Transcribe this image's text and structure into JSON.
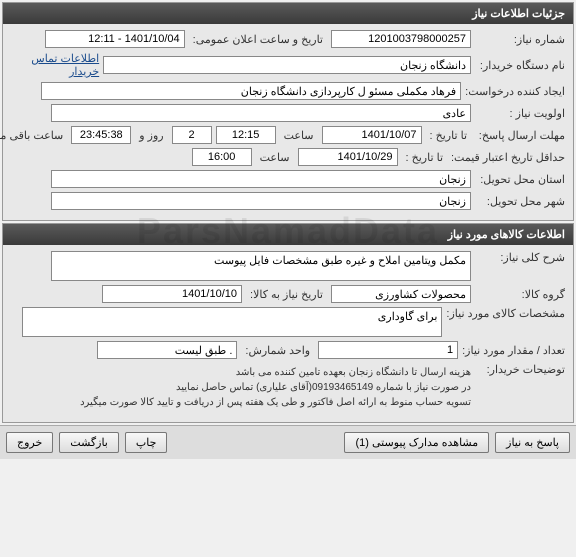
{
  "panel1": {
    "title": "جزئیات اطلاعات نیاز",
    "request_number_label": "شماره نیاز:",
    "request_number": "1201003798000257",
    "announce_label": "تاریخ و ساعت اعلان عمومی:",
    "announce_value": "1401/10/04 - 12:11",
    "org_label": "نام دستگاه خریدار:",
    "org_value": "دانشگاه زنجان",
    "contact_link": "اطلاعات تماس خریدار",
    "creator_label": "ایجاد کننده درخواست:",
    "creator_value": "فرهاد مکملی مسئو ل کارپردازی دانشگاه زنجان",
    "priority_label": "اولویت نیاز :",
    "priority_value": "عادی",
    "deadline_label": "مهلت ارسال پاسخ:",
    "to_date_label": "تا تاریخ :",
    "deadline_date": "1401/10/07",
    "time_label": "ساعت",
    "deadline_time": "12:15",
    "days_remaining": "2",
    "days_label": "روز و",
    "time_remaining": "23:45:38",
    "remaining_label": "ساعت باقی مانده",
    "min_validity_label": "حداقل تاریخ اعتبار قیمت:",
    "min_validity_date": "1401/10/29",
    "min_validity_time": "16:00",
    "province_label": "استان محل تحویل:",
    "province_value": "زنجان",
    "city_label": "شهر محل تحویل:",
    "city_value": "زنجان"
  },
  "panel2": {
    "title": "اطلاعات کالاهای مورد نیاز",
    "desc_label": "شرح کلی نیاز:",
    "desc_value": "مکمل ویتامین املاح و غیره طبق مشخصات فایل پیوست",
    "group_label": "گروه کالا:",
    "group_value": "محصولات کشاورزی",
    "need_date_label": "تاریخ نیاز به کالا:",
    "need_date_value": "1401/10/10",
    "spec_label": "مشخصات کالای مورد نیاز:",
    "spec_value": "برای گاوداری",
    "qty_label": "تعداد / مقدار مورد نیاز:",
    "qty_value": "1",
    "unit_label": "واحد شمارش:",
    "unit_value": ". طبق لیست",
    "notes_label": "توضیحات خریدار:",
    "notes_line1": "هزینه ارسال تا دانشگاه زنجان بعهده تامین کننده می باشد",
    "notes_line2": "در صورت نیاز با شماره 09193465149(آقای علیاری) تماس حاصل نمایید",
    "notes_line3": "تسویه حساب منوط به ارائه اصل فاکتور و طی یک هفته پس از دریافت و تایید کالا صورت میگیرد"
  },
  "buttons": {
    "reply": "پاسخ به نیاز",
    "attachments": "مشاهده مدارک پیوستی (1)",
    "print": "چاپ",
    "back": "بازگشت",
    "exit": "خروج"
  },
  "watermark": "ParsNamadData"
}
